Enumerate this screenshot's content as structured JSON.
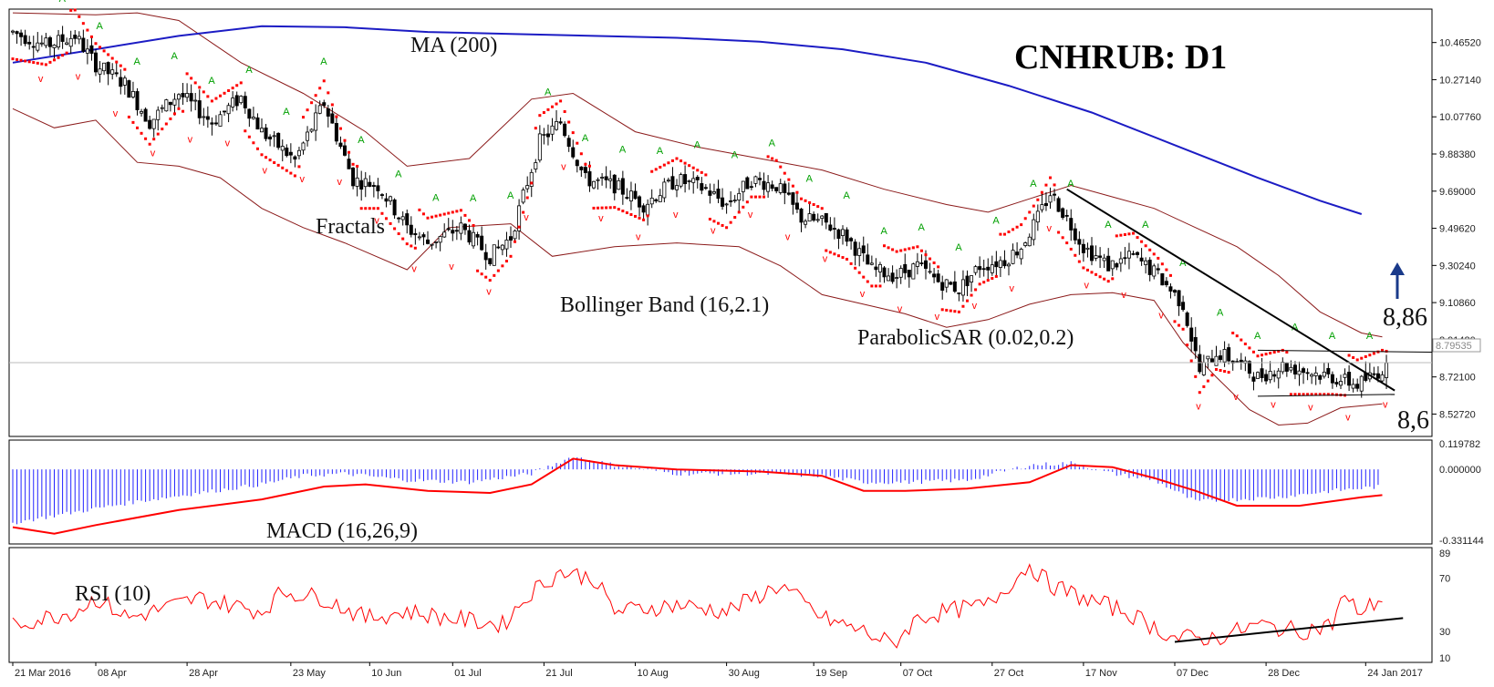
{
  "title": "CNHRUB: D1",
  "labels": {
    "ma": "MA (200)",
    "fractals": "Fractals",
    "bollinger": "Bollinger Band (16,2.1)",
    "sar": "ParabolicSAR (0.02,0.2)",
    "macd": "MACD (16,26,9)",
    "rsi": "RSI (10)"
  },
  "levels": {
    "resistance": "8,86",
    "support": "8,6",
    "current_price": "8.79535"
  },
  "colors": {
    "ma": "#1c1cc4",
    "bollinger": "#8b1a1a",
    "sar": "#ff0000",
    "macd_hist": "#2222ff",
    "macd_signal": "#ff0000",
    "rsi": "#ff0000",
    "fractal_up": "#00a000",
    "fractal_down": "#ff0000",
    "arrow": "#1a3a8a"
  },
  "chart_data": [
    {
      "type": "candlestick",
      "name": "price",
      "y_ticks": [
        "10.46520",
        "10.27140",
        "10.07760",
        "9.88380",
        "9.69000",
        "9.49620",
        "9.30240",
        "9.10860",
        "8.91480",
        "8.72100",
        "8.52720"
      ],
      "ylim": [
        8.42,
        10.63
      ],
      "x_ticks": [
        "21 Mar 2016",
        "08 Apr",
        "28 Apr",
        "23 May",
        "10 Jun",
        "01 Jul",
        "21 Jul",
        "10 Aug",
        "30 Aug",
        "19 Sep",
        "07 Oct",
        "27 Oct",
        "17 Nov",
        "07 Dec",
        "28 Dec",
        "24 Jan 2017"
      ],
      "ma200": [
        [
          0,
          10.36
        ],
        [
          20,
          10.43
        ],
        [
          40,
          10.5
        ],
        [
          60,
          10.55
        ],
        [
          80,
          10.545
        ],
        [
          100,
          10.52
        ],
        [
          120,
          10.51
        ],
        [
          140,
          10.5
        ],
        [
          160,
          10.49
        ],
        [
          180,
          10.47
        ],
        [
          200,
          10.43
        ],
        [
          220,
          10.36
        ],
        [
          240,
          10.24
        ],
        [
          260,
          10.1
        ],
        [
          280,
          9.93
        ],
        [
          300,
          9.76
        ],
        [
          315,
          9.64
        ],
        [
          325,
          9.57
        ]
      ],
      "bb_upper": [
        [
          0,
          10.62
        ],
        [
          20,
          10.61
        ],
        [
          30,
          10.62
        ],
        [
          40,
          10.58
        ],
        [
          55,
          10.36
        ],
        [
          70,
          10.2
        ],
        [
          85,
          10.0
        ],
        [
          95,
          9.82
        ],
        [
          110,
          9.86
        ],
        [
          125,
          10.17
        ],
        [
          135,
          10.2
        ],
        [
          150,
          10.0
        ],
        [
          165,
          9.92
        ],
        [
          180,
          9.86
        ],
        [
          195,
          9.8
        ],
        [
          210,
          9.7
        ],
        [
          225,
          9.62
        ],
        [
          235,
          9.58
        ],
        [
          245,
          9.65
        ],
        [
          255,
          9.72
        ],
        [
          265,
          9.66
        ],
        [
          275,
          9.6
        ],
        [
          285,
          9.5
        ],
        [
          295,
          9.4
        ],
        [
          305,
          9.25
        ],
        [
          315,
          9.06
        ],
        [
          325,
          8.95
        ],
        [
          330,
          8.93
        ]
      ],
      "bb_lower": [
        [
          0,
          10.12
        ],
        [
          10,
          10.02
        ],
        [
          20,
          10.06
        ],
        [
          30,
          9.84
        ],
        [
          40,
          9.82
        ],
        [
          50,
          9.76
        ],
        [
          60,
          9.6
        ],
        [
          70,
          9.5
        ],
        [
          80,
          9.42
        ],
        [
          95,
          9.28
        ],
        [
          105,
          9.5
        ],
        [
          120,
          9.52
        ],
        [
          130,
          9.35
        ],
        [
          145,
          9.4
        ],
        [
          160,
          9.42
        ],
        [
          175,
          9.4
        ],
        [
          185,
          9.3
        ],
        [
          195,
          9.15
        ],
        [
          205,
          9.1
        ],
        [
          215,
          9.05
        ],
        [
          225,
          8.98
        ],
        [
          235,
          9.02
        ],
        [
          245,
          9.1
        ],
        [
          255,
          9.15
        ],
        [
          265,
          9.16
        ],
        [
          275,
          9.12
        ],
        [
          282,
          8.9
        ],
        [
          290,
          8.72
        ],
        [
          298,
          8.55
        ],
        [
          305,
          8.47
        ],
        [
          312,
          8.48
        ],
        [
          320,
          8.56
        ],
        [
          330,
          8.58
        ]
      ],
      "current_price": 8.79535,
      "resistance": 8.86,
      "support": 8.6,
      "triangle_upper_line": [
        [
          254,
          9.7
        ],
        [
          333,
          8.65
        ]
      ],
      "triangle_top_flat": [
        [
          300,
          8.86
        ],
        [
          333,
          8.85
        ]
      ],
      "triangle_bottom_flat": [
        [
          300,
          8.62
        ],
        [
          333,
          8.63
        ]
      ]
    },
    {
      "type": "histogram+line",
      "name": "MACD",
      "y_ticks": [
        "0.119782",
        "0.000000",
        "-0.331144"
      ],
      "ylim": [
        -0.331144,
        0.119782
      ]
    },
    {
      "type": "line",
      "name": "RSI",
      "y_ticks": [
        "89",
        "70",
        "30",
        "10"
      ],
      "ylim": [
        10,
        89
      ],
      "trendline": [
        [
          280,
          22
        ],
        [
          335,
          40
        ]
      ]
    }
  ]
}
